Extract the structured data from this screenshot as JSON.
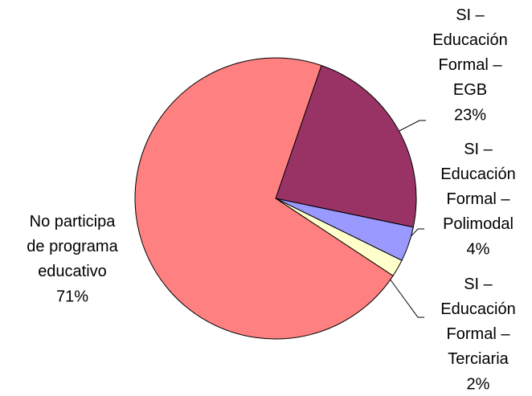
{
  "chart_data": {
    "type": "pie",
    "categories": [
      "SI – Educación Formal – EGB",
      "SI – Educación Formal – Polimodal",
      "SI – Educación Formal – Terciaria",
      "No participa de programa educativo"
    ],
    "values": [
      23,
      4,
      2,
      71
    ],
    "value_labels": [
      "23%",
      "4%",
      "2%",
      "71%"
    ],
    "colors": [
      "#993366",
      "#9999ff",
      "#ffffcc",
      "#ff8080"
    ]
  }
}
